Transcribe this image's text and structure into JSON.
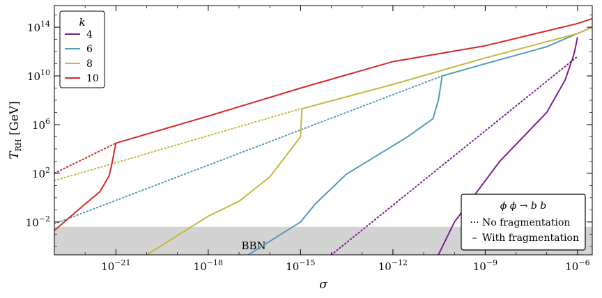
{
  "chart_data": {
    "type": "line",
    "xlabel": "σ",
    "ylabel_main": "T",
    "ylabel_sub": "RH",
    "ylabel_unit": "[GeV]",
    "xscale": "log",
    "yscale": "log",
    "xlim": [
      1e-23,
      3e-06
    ],
    "ylim": [
      2e-05,
      6000000000000000.0
    ],
    "xticks": [
      {
        "value": 1e-21,
        "label": "10",
        "exp": "−21"
      },
      {
        "value": 1e-18,
        "label": "10",
        "exp": "−18"
      },
      {
        "value": 1e-15,
        "label": "10",
        "exp": "−15"
      },
      {
        "value": 1e-12,
        "label": "10",
        "exp": "−12"
      },
      {
        "value": 1e-09,
        "label": "10",
        "exp": "−9"
      },
      {
        "value": 1e-06,
        "label": "10",
        "exp": "−6"
      }
    ],
    "yticks": [
      {
        "value": 0.01,
        "label": "10",
        "exp": "−2"
      },
      {
        "value": 100.0,
        "label": "10",
        "exp": "2"
      },
      {
        "value": 1000000.0,
        "label": "10",
        "exp": "6"
      },
      {
        "value": 10000000000.0,
        "label": "10",
        "exp": "10"
      },
      {
        "value": 100000000000000.0,
        "label": "10",
        "exp": "14"
      }
    ],
    "bbn_band": {
      "label": "BBN",
      "ymax": 0.004,
      "color": "#d3d3d3"
    },
    "legend_k": {
      "title": "k",
      "position": "top-left"
    },
    "legend_style": {
      "title": "ϕ ϕ → b b",
      "position": "bottom-right",
      "items": [
        {
          "symbol": "···",
          "label": "No fragmentation"
        },
        {
          "symbol": "–",
          "label": "With fragmentation"
        }
      ]
    },
    "series": [
      {
        "name": "4",
        "color": "#7b1f8e",
        "no_fragmentation": [
          [
            1e-14,
            2e-05
          ],
          [
            1e-06,
            400000000000.0
          ]
        ],
        "with_fragmentation": [
          [
            3e-11,
            2e-05
          ],
          [
            1e-10,
            0.01
          ],
          [
            3e-09,
            1000.0
          ],
          [
            1e-07,
            10000000.0
          ],
          [
            4e-07,
            5000000000.0
          ],
          [
            6e-07,
            100000000000.0
          ],
          [
            7e-07,
            300000000000.0
          ],
          [
            8e-07,
            1000000000000.0
          ],
          [
            1e-06,
            15000000000000.0
          ]
        ]
      },
      {
        "name": "6",
        "color": "#4f9db7",
        "no_fragmentation": [
          [
            1e-23,
            0.007
          ],
          [
            4e-11,
            10000000000.0
          ]
        ],
        "with_fragmentation": [
          [
            2e-17,
            2e-05
          ],
          [
            1e-15,
            0.01
          ],
          [
            3e-15,
            0.3
          ],
          [
            3e-14,
            80
          ],
          [
            3e-12,
            100000.0
          ],
          [
            2e-11,
            3000000.0
          ],
          [
            3e-11,
            100000000.0
          ],
          [
            4e-11,
            10000000000.0
          ],
          [
            1e-09,
            100000000000.0
          ],
          [
            1e-07,
            2500000000000.0
          ],
          [
            3e-06,
            100000000000000.0
          ]
        ]
      },
      {
        "name": "8",
        "color": "#c6b73e",
        "no_fragmentation": [
          [
            1e-23,
            25.0
          ],
          [
            1e-15,
            20000000.0
          ]
        ],
        "with_fragmentation": [
          [
            1e-20,
            2e-05
          ],
          [
            1e-18,
            0.03
          ],
          [
            1e-17,
            0.5
          ],
          [
            1e-16,
            50
          ],
          [
            5e-16,
            10000.0
          ],
          [
            1e-15,
            100000.0
          ],
          [
            1.1e-15,
            20000000.0
          ],
          [
            1e-12,
            2000000000.0
          ],
          [
            1e-09,
            300000000000.0
          ],
          [
            1e-06,
            30000000000000.0
          ],
          [
            3e-06,
            100000000000000.0
          ]
        ]
      },
      {
        "name": "10",
        "color": "#d62728",
        "no_fragmentation": [
          [
            1e-23,
            100.0
          ],
          [
            1e-21,
            30000.0
          ]
        ],
        "with_fragmentation": [
          [
            1e-23,
            0.002
          ],
          [
            1e-22,
            0.3
          ],
          [
            3e-22,
            3
          ],
          [
            6e-22,
            60
          ],
          [
            7e-22,
            300
          ],
          [
            1e-21,
            30000.0
          ],
          [
            1e-18,
            5000000.0
          ],
          [
            1e-15,
            1000000000.0
          ],
          [
            1e-12,
            150000000000.0
          ],
          [
            1e-09,
            3000000000000.0
          ],
          [
            1e-06,
            200000000000000.0
          ],
          [
            3e-06,
            500000000000000.0
          ]
        ]
      }
    ]
  }
}
